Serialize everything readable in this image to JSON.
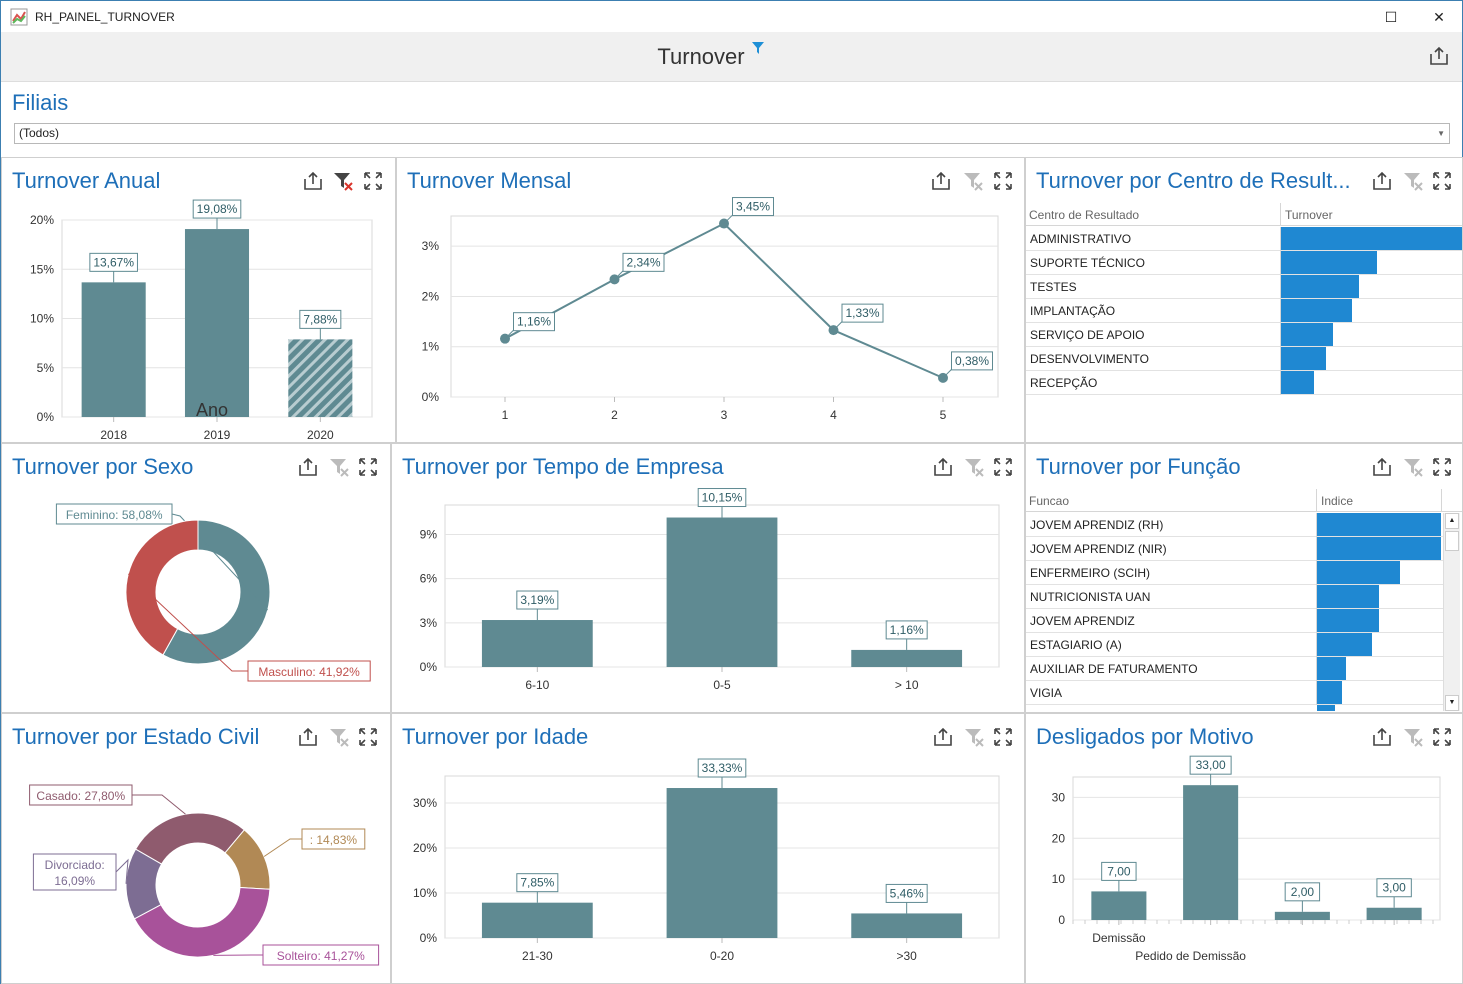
{
  "window": {
    "title": "RH_PAINEL_TURNOVER",
    "maximize": "☐",
    "close": "✕"
  },
  "dashboard": {
    "title": "Turnover"
  },
  "filter": {
    "label": "Filiais",
    "value": "(Todos)"
  },
  "colors": {
    "bar": "#5f8a92",
    "accent": "#1e6fb8",
    "grid_bar": "#1f88d2",
    "female": "#5f8a92",
    "male": "#c0504d"
  },
  "panels": {
    "anual": {
      "title": "Turnover Anual"
    },
    "mensal": {
      "title": "Turnover Mensal"
    },
    "centro": {
      "title": "Turnover por Centro de Result..."
    },
    "sexo": {
      "title": "Turnover por Sexo"
    },
    "tempo": {
      "title": "Turnover por Tempo de Empresa"
    },
    "funcao": {
      "title": "Turnover por Função"
    },
    "civil": {
      "title": "Turnover por Estado Civil"
    },
    "idade": {
      "title": "Turnover por Idade"
    },
    "motivo": {
      "title": "Desligados por Motivo"
    }
  },
  "centro_grid": {
    "columns": [
      "Centro de Resultado",
      "Turnover"
    ],
    "rows": [
      {
        "label": "ADMINISTRATIVO",
        "value": 1.0
      },
      {
        "label": "SUPORTE TÉCNICO",
        "value": 0.53
      },
      {
        "label": "TESTES",
        "value": 0.43
      },
      {
        "label": "IMPLANTAÇÃO",
        "value": 0.39
      },
      {
        "label": "SERVIÇO DE APOIO",
        "value": 0.29
      },
      {
        "label": "DESENVOLVIMENTO",
        "value": 0.25
      },
      {
        "label": "RECEPÇÃO",
        "value": 0.18
      }
    ]
  },
  "funcao_grid": {
    "columns": [
      "Funcao",
      "Indice"
    ],
    "rows": [
      {
        "label": "JOVEM APRENDIZ (RH)",
        "value": 1.0
      },
      {
        "label": "JOVEM APRENDIZ (NIR)",
        "value": 1.0
      },
      {
        "label": "ENFERMEIRO (SCIH)",
        "value": 0.67
      },
      {
        "label": "NUTRICIONISTA UAN",
        "value": 0.5
      },
      {
        "label": "JOVEM APRENDIZ",
        "value": 0.5
      },
      {
        "label": "ESTAGIARIO (A)",
        "value": 0.44
      },
      {
        "label": "AUXILIAR DE FATURAMENTO",
        "value": 0.23
      },
      {
        "label": "VIGIA",
        "value": 0.2
      }
    ]
  },
  "chart_data": [
    {
      "id": "anual",
      "type": "bar",
      "categories": [
        "2018",
        "2019",
        "2020"
      ],
      "values": [
        13.67,
        19.08,
        7.88
      ],
      "labels": [
        "13,67%",
        "19,08%",
        "7,88%"
      ],
      "highlight_hatched": [
        false,
        false,
        true
      ],
      "xlabel": "Ano",
      "ylabel": "",
      "yticks": [
        "0%",
        "5%",
        "10%",
        "15%",
        "20%"
      ],
      "ylim": [
        0,
        20
      ]
    },
    {
      "id": "mensal",
      "type": "line",
      "x": [
        "1",
        "2",
        "3",
        "4",
        "5"
      ],
      "values": [
        1.16,
        2.34,
        3.45,
        1.33,
        0.38
      ],
      "labels": [
        "1,16%",
        "2,34%",
        "3,45%",
        "1,33%",
        "0,38%"
      ],
      "yticks": [
        "0%",
        "1%",
        "2%",
        "3%"
      ],
      "ylim": [
        0,
        3.6
      ]
    },
    {
      "id": "sexo",
      "type": "pie",
      "slices": [
        {
          "name": "Feminino",
          "value": 58.08,
          "label": "Feminino: 58,08%",
          "color": "#5f8a92"
        },
        {
          "name": "Masculino",
          "value": 41.92,
          "label": "Masculino: 41,92%",
          "color": "#c0504d"
        }
      ]
    },
    {
      "id": "tempo",
      "type": "bar",
      "categories": [
        "6-10",
        "0-5",
        "> 10"
      ],
      "values": [
        3.19,
        10.15,
        1.16
      ],
      "labels": [
        "3,19%",
        "10,15%",
        "1,16%"
      ],
      "yticks": [
        "0%",
        "3%",
        "6%",
        "9%"
      ],
      "ylim": [
        0,
        11
      ]
    },
    {
      "id": "civil",
      "type": "pie",
      "slices": [
        {
          "name": "",
          "value": 14.83,
          "label": ": 14,83%",
          "color": "#b18955"
        },
        {
          "name": "Solteiro",
          "value": 41.27,
          "label": "Solteiro: 41,27%",
          "color": "#a8529a"
        },
        {
          "name": "Divorciado",
          "value": 16.09,
          "label": "Divorciado: 16,09%",
          "color": "#7d6d93"
        },
        {
          "name": "Casado",
          "value": 27.8,
          "label": "Casado: 27,80%",
          "color": "#8f5b6e"
        }
      ]
    },
    {
      "id": "idade",
      "type": "bar",
      "categories": [
        "21-30",
        "0-20",
        ">30"
      ],
      "values": [
        7.85,
        33.33,
        5.46
      ],
      "labels": [
        "7,85%",
        "33,33%",
        "5,46%"
      ],
      "yticks": [
        "0%",
        "10%",
        "20%",
        "30%"
      ],
      "ylim": [
        0,
        36
      ]
    },
    {
      "id": "motivo",
      "type": "bar",
      "categories": [
        "Demissão",
        "Pedido de Demissão",
        "",
        ""
      ],
      "values": [
        7,
        33,
        2,
        3
      ],
      "labels": [
        "7,00",
        "33,00",
        "2,00",
        "3,00"
      ],
      "yticks": [
        "0",
        "10",
        "20",
        "30"
      ],
      "ylim": [
        0,
        35
      ]
    }
  ]
}
